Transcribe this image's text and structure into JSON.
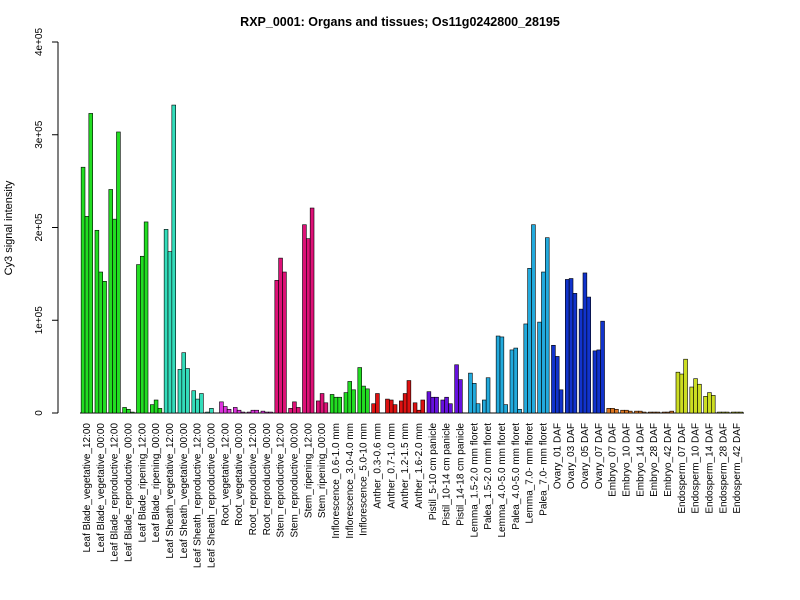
{
  "chart_data": {
    "type": "bar",
    "title": "RXP_0001: Organs and tissues; Os11g0242800_28195",
    "ylabel": "Cy3 signal intensity",
    "xlabel": "",
    "ylim": [
      0,
      400000
    ],
    "yticks": [
      {
        "value": 0,
        "label": "0"
      },
      {
        "value": 100000,
        "label": "1e+05"
      },
      {
        "value": 200000,
        "label": "2e+05"
      },
      {
        "value": 300000,
        "label": "3e+05"
      },
      {
        "value": 400000,
        "label": "4e+05"
      }
    ],
    "categories": [
      "Leaf Blade_vegetative_12:00",
      "Leaf Blade_vegetative_00:00",
      "Leaf Blade_reproductive_12:00",
      "Leaf Blade_reproductive_00:00",
      "Leaf Blade_ripening_12:00",
      "Leaf Blade_ripening_00:00",
      "Leaf Sheath_vegetative_12:00",
      "Leaf Sheath_vegetative_00:00",
      "Leaf Sheath_reproductive_12:00",
      "Leaf Sheath_reproductive_00:00",
      "Root_vegetative_12:00",
      "Root_vegetative_00:00",
      "Root_reproductive_12:00",
      "Root_reproductive_00:00",
      "Stem_reproductive_12:00",
      "Stem_reproductive_00:00",
      "Stem_ripening_12:00",
      "Stem_ripening_00:00",
      "Inflorescence_0.6-1.0 mm",
      "Inflorescence_3.0-4.0 mm",
      "Inflorescence_5.0-10 mm",
      "Anther_0.3-0.6 mm",
      "Anther_0.7-1.0 mm",
      "Anther_1.2-1.5 mm",
      "Anther_1.6-2.0 mm",
      "Pistil_5-10 cm panicle",
      "Pistil_10-14 cm panicle",
      "Pistil_14-18 cm panicle",
      "Lemma_1.5-2.0 mm floret",
      "Palea_1.5-2.0 mm floret",
      "Lemma_4.0-5.0 mm floret",
      "Palea_4.0-5.0 mm floret",
      "Lemma_7.0- mm floret",
      "Palea_7.0- mm floret",
      "Ovary_01 DAF",
      "Ovary_03 DAF",
      "Ovary_05 DAF",
      "Ovary_07 DAF",
      "Embryo_07 DAF",
      "Embryo_10 DAF",
      "Embryo_14 DAF",
      "Embryo_28 DAF",
      "Embryo_42 DAF",
      "Endosperm_07 DAF",
      "Endosperm_10 DAF",
      "Endosperm_14 DAF",
      "Endosperm_28 DAF",
      "Endosperm_42 DAF"
    ],
    "colors": [
      "#22dd22",
      "#22dd22",
      "#22dd22",
      "#22dd22",
      "#22dd22",
      "#22dd22",
      "#33ddbb",
      "#33ddbb",
      "#33ddbb",
      "#33ddbb",
      "#dd33dd",
      "#dd33dd",
      "#dd33dd",
      "#dd33dd",
      "#dd1177",
      "#dd1177",
      "#dd1177",
      "#dd1177",
      "#22dd22",
      "#22dd22",
      "#22dd22",
      "#dd1111",
      "#dd1111",
      "#dd1111",
      "#dd1111",
      "#6611dd",
      "#6611dd",
      "#6611dd",
      "#22aadd",
      "#22aadd",
      "#22aadd",
      "#22aadd",
      "#22aadd",
      "#22aadd",
      "#1133cc",
      "#1133cc",
      "#1133cc",
      "#1133cc",
      "#dd7722",
      "#dd7722",
      "#dd7722",
      "#dd7722",
      "#dd7722",
      "#ccdd22",
      "#ccdd22",
      "#ccdd22",
      "#ccdd22",
      "#ccdd22"
    ],
    "replicates": [
      [
        265000,
        212000,
        323000
      ],
      [
        197000,
        152000,
        142000
      ],
      [
        241000,
        209000,
        303000
      ],
      [
        6000,
        4000,
        1000
      ],
      [
        160000,
        169000,
        206000
      ],
      [
        9000,
        14000,
        5000
      ],
      [
        198000,
        174000,
        332000
      ],
      [
        47000,
        65000,
        48000
      ],
      [
        24000,
        15000,
        21000
      ],
      [
        1000,
        5000,
        0
      ],
      [
        12000,
        7000,
        4000
      ],
      [
        6000,
        3000,
        1000
      ],
      [
        1000,
        3000,
        3000
      ],
      [
        2000,
        1000,
        1000
      ],
      [
        143000,
        167000,
        152000
      ],
      [
        5000,
        12000,
        6000
      ],
      [
        203000,
        188000,
        221000
      ],
      [
        13000,
        21000,
        11000
      ],
      [
        20000,
        17000,
        17000
      ],
      [
        22000,
        34000,
        25000
      ],
      [
        49000,
        29000,
        26000
      ],
      [
        10000,
        21000,
        0
      ],
      [
        15000,
        14000,
        9000
      ],
      [
        13000,
        21000,
        35000
      ],
      [
        11000,
        3000,
        14000
      ],
      [
        23000,
        17000,
        17000
      ],
      [
        14000,
        17000,
        10000
      ],
      [
        52000,
        36000,
        0
      ],
      [
        43000,
        32000,
        10000
      ],
      [
        14000,
        38000,
        0
      ],
      [
        83000,
        82000,
        9000
      ],
      [
        68000,
        70000,
        4000
      ],
      [
        96000,
        156000,
        203000
      ],
      [
        98000,
        152000,
        189000
      ],
      [
        73000,
        61000,
        25000
      ],
      [
        144000,
        145000,
        129000
      ],
      [
        112000,
        151000,
        125000
      ],
      [
        67000,
        68000,
        99000
      ],
      [
        5000,
        5000,
        4000
      ],
      [
        3000,
        3000,
        2000
      ],
      [
        2000,
        2000,
        1000
      ],
      [
        1000,
        1000,
        1000
      ],
      [
        1000,
        1000,
        2000
      ],
      [
        44000,
        42000,
        58000
      ],
      [
        28000,
        37000,
        31000
      ],
      [
        18000,
        22000,
        19000
      ],
      [
        1000,
        1000,
        1000
      ],
      [
        1000,
        1000,
        1000
      ]
    ]
  }
}
